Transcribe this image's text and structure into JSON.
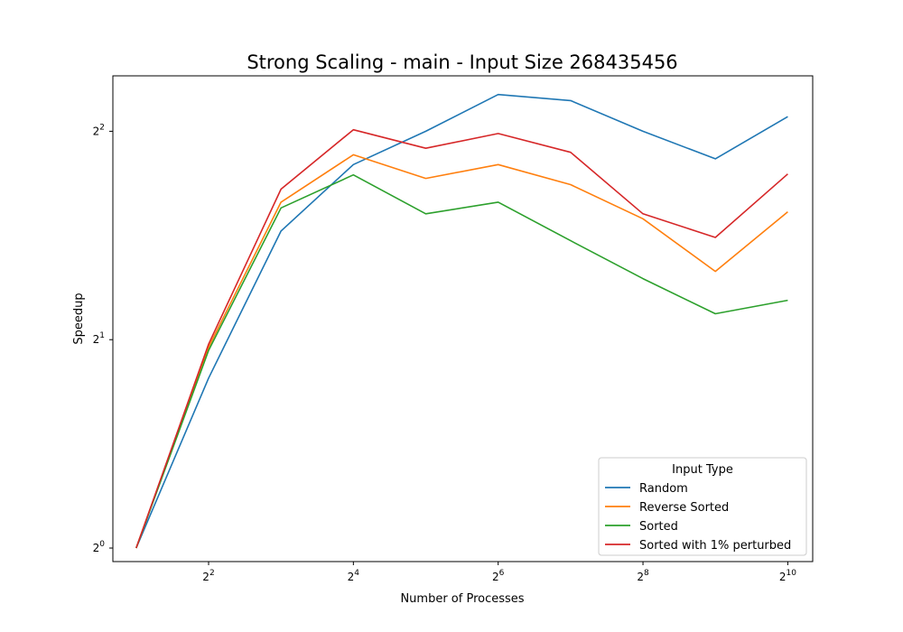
{
  "chart_data": {
    "type": "line",
    "title": "Strong Scaling - main - Input Size 268435456",
    "xlabel": "Number of Processes",
    "ylabel": "Speedup",
    "xscale": "log2",
    "yscale": "log2",
    "x": [
      2,
      4,
      8,
      16,
      32,
      64,
      128,
      256,
      512,
      1024
    ],
    "xlim": [
      1.6,
      1300
    ],
    "ylim": [
      0.956,
      4.81
    ],
    "xticks": [
      {
        "base": "2",
        "exp": "2"
      },
      {
        "base": "2",
        "exp": "4"
      },
      {
        "base": "2",
        "exp": "6"
      },
      {
        "base": "2",
        "exp": "8"
      },
      {
        "base": "2",
        "exp": "10"
      }
    ],
    "yticks": [
      {
        "base": "2",
        "exp": "0"
      },
      {
        "base": "2",
        "exp": "1"
      },
      {
        "base": "2",
        "exp": "2"
      }
    ],
    "grid": false,
    "legend_title": "Input Type",
    "legend_position": "lower-right",
    "series": [
      {
        "name": "Random",
        "color": "#1f77b4",
        "values": [
          1.0,
          1.76,
          2.87,
          3.58,
          4.0,
          4.52,
          4.43,
          4.0,
          3.65,
          4.2
        ]
      },
      {
        "name": "Reverse Sorted",
        "color": "#ff7f0e",
        "values": [
          1.0,
          1.95,
          3.16,
          3.7,
          3.42,
          3.58,
          3.35,
          2.99,
          2.51,
          3.06
        ]
      },
      {
        "name": "Sorted",
        "color": "#2ca02c",
        "values": [
          1.0,
          1.93,
          3.1,
          3.46,
          3.04,
          3.16,
          2.78,
          2.45,
          2.18,
          2.28
        ]
      },
      {
        "name": "Sorted with 1% perturbed",
        "color": "#d62728",
        "values": [
          1.0,
          1.97,
          3.3,
          4.02,
          3.78,
          3.97,
          3.73,
          3.04,
          2.81,
          3.47
        ]
      }
    ]
  }
}
